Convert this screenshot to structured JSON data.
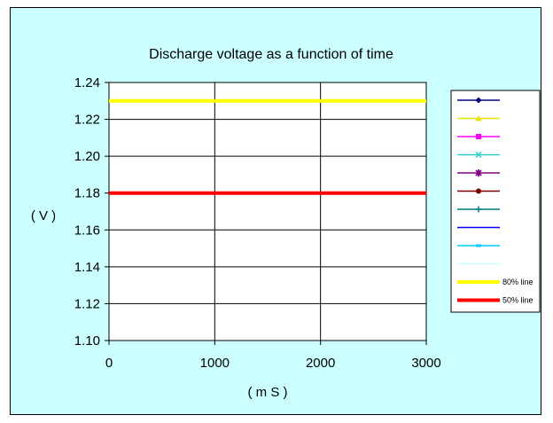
{
  "chart_data": {
    "type": "line",
    "title": "Discharge voltage as a function of time",
    "xlabel": "( m S )",
    "ylabel": "( V )",
    "xlim": [
      0,
      3000
    ],
    "ylim": [
      1.1,
      1.24
    ],
    "x_ticks": [
      "0",
      "1000",
      "2000",
      "3000"
    ],
    "x_tick_values": [
      0,
      1000,
      2000,
      3000
    ],
    "y_ticks": [
      "1.24",
      "1.22",
      "1.20",
      "1.18",
      "1.16",
      "1.14",
      "1.12",
      "1.10"
    ],
    "y_tick_values": [
      1.24,
      1.22,
      1.2,
      1.18,
      1.16,
      1.14,
      1.12,
      1.1
    ],
    "grid": true,
    "legend_position": "right",
    "background_color": "#ccffff",
    "plot_background_color": "#ffffff",
    "legend_entries": [
      {
        "name": "",
        "color": "#000080",
        "marker": "diamond"
      },
      {
        "name": "",
        "color": "#e6e600",
        "marker": "triangle"
      },
      {
        "name": "",
        "color": "#ff00ff",
        "marker": "square"
      },
      {
        "name": "",
        "color": "#33cccc",
        "marker": "x"
      },
      {
        "name": "",
        "color": "#800080",
        "marker": "star"
      },
      {
        "name": "",
        "color": "#800000",
        "marker": "circle"
      },
      {
        "name": "",
        "color": "#008080",
        "marker": "plus"
      },
      {
        "name": "",
        "color": "#0000ff",
        "marker": "none"
      },
      {
        "name": "",
        "color": "#00ccff",
        "marker": "bar"
      },
      {
        "name": "",
        "color": "#ccffff",
        "marker": "none"
      },
      {
        "name": "80% line",
        "color": "#ffff00",
        "marker": "none",
        "thick": true
      },
      {
        "name": "50% line",
        "color": "#ff0000",
        "marker": "none",
        "thick": true
      }
    ],
    "series": [
      {
        "name": "80% line",
        "color": "#ffff00",
        "x": [
          0,
          3000
        ],
        "y": [
          1.23,
          1.23
        ]
      },
      {
        "name": "50% line",
        "color": "#ff0000",
        "x": [
          0,
          3000
        ],
        "y": [
          1.18,
          1.18
        ]
      }
    ]
  }
}
